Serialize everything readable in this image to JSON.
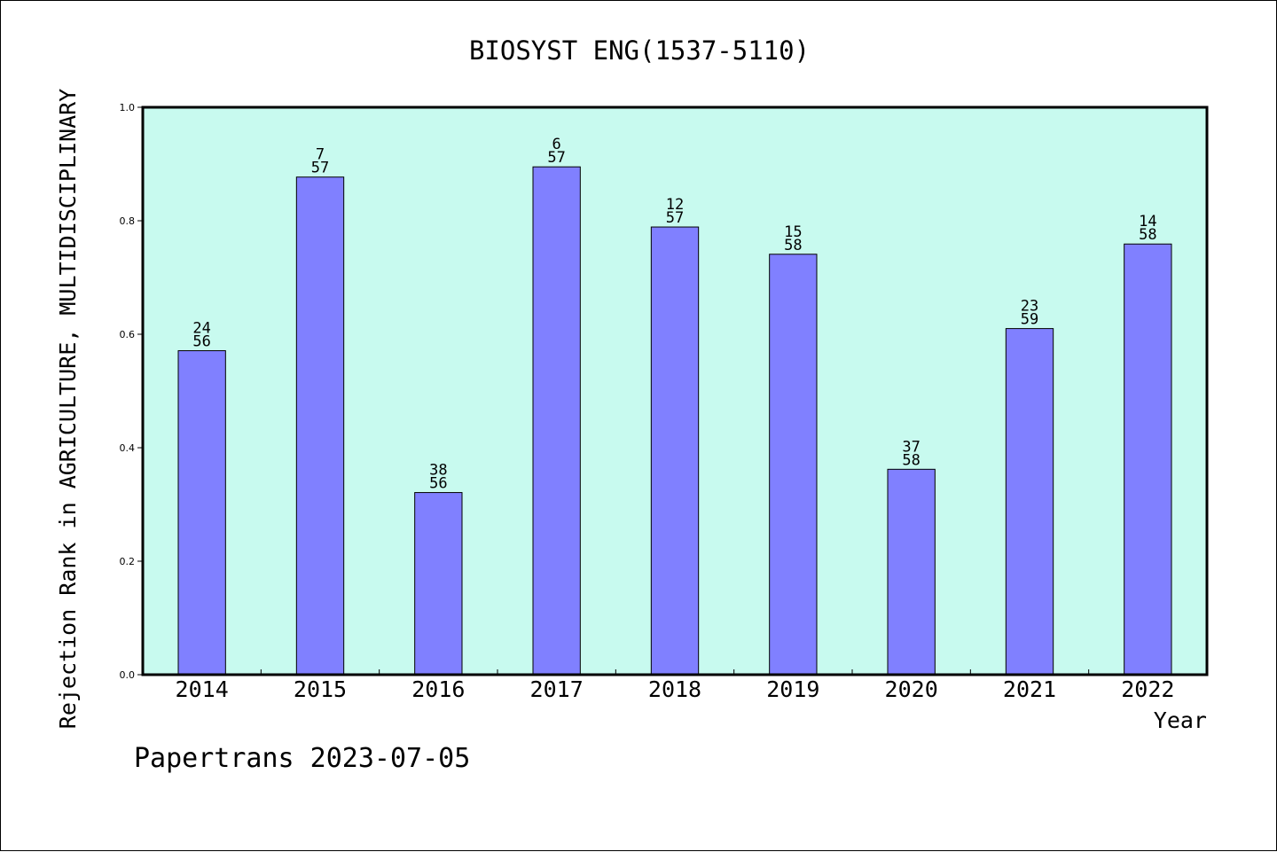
{
  "chart_data": {
    "type": "bar",
    "title": "BIOSYST ENG(1537-5110)",
    "xlabel": "Year",
    "ylabel": "Rejection Rank in AGRICULTURE, MULTIDISCIPLINARY",
    "categories": [
      "2014",
      "2015",
      "2016",
      "2017",
      "2018",
      "2019",
      "2020",
      "2021",
      "2022"
    ],
    "values": [
      0.571,
      0.877,
      0.321,
      0.895,
      0.789,
      0.741,
      0.362,
      0.61,
      0.759
    ],
    "rank": [
      "24",
      "7",
      "38",
      "6",
      "12",
      "15",
      "37",
      "23",
      "14"
    ],
    "total": [
      "56",
      "57",
      "56",
      "57",
      "57",
      "58",
      "58",
      "59",
      "58"
    ],
    "ylim": [
      0,
      1.0
    ],
    "yticks": [
      "0.0",
      "0.2",
      "0.4",
      "0.6",
      "0.8",
      "1.0"
    ],
    "grid": false,
    "colors": {
      "plot_background": "#c8faef",
      "bar_fill": "#8080ff",
      "bar_stroke": "#000000",
      "axis": "#000000"
    }
  },
  "footer": "Papertrans 2023-07-05"
}
